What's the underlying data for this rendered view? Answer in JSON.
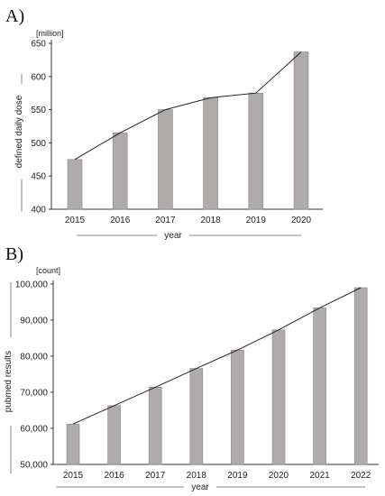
{
  "chart_data": [
    {
      "panel_label": "A)",
      "type": "bar",
      "overlay": "line",
      "categories": [
        "2015",
        "2016",
        "2017",
        "2018",
        "2019",
        "2020"
      ],
      "values": [
        475,
        515,
        550,
        568,
        575,
        637
      ],
      "unit_label": "[million]",
      "xlabel": "year",
      "ylabel": "defined daily dose",
      "ylim": [
        400,
        650
      ],
      "yticks": [
        "400",
        "450",
        "500",
        "550",
        "600",
        "650"
      ],
      "bar_color": "#b0abab",
      "grid": false
    },
    {
      "panel_label": "B)",
      "type": "bar",
      "overlay": "line",
      "categories": [
        "2015",
        "2016",
        "2017",
        "2018",
        "2019",
        "2020",
        "2021",
        "2022"
      ],
      "values": [
        61200,
        66300,
        71400,
        76600,
        81700,
        87300,
        93400,
        99000
      ],
      "unit_label": "[count]",
      "xlabel": "year",
      "ylabel": "pubmed results",
      "ylim": [
        50000,
        100000
      ],
      "yticks": [
        "50,000",
        "60,000",
        "70,000",
        "80,000",
        "90,000",
        "100,000"
      ],
      "bar_color": "#b0abab",
      "grid": false
    }
  ]
}
